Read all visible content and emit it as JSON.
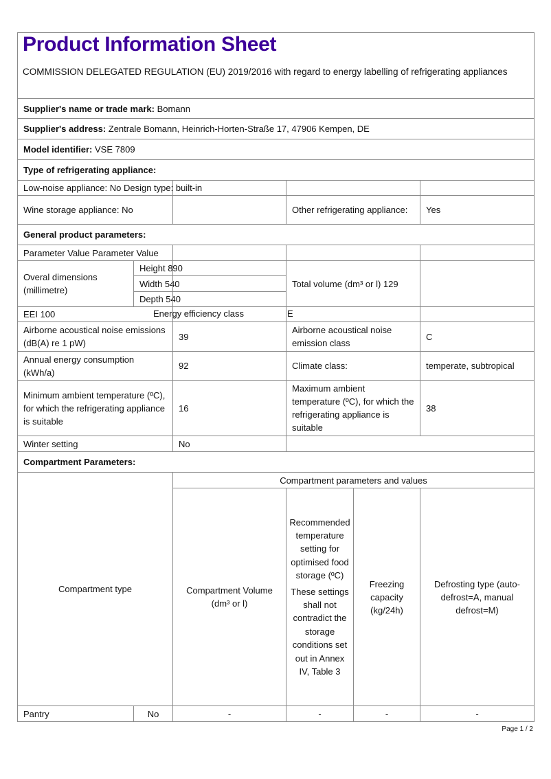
{
  "title": "Product Information Sheet",
  "subtitle": "COMMISSION DELEGATED REGULATION (EU) 2019/2016 with regard to energy labelling of refrigerating appliances",
  "supplier_name": {
    "label": "Supplier's name or trade mark:",
    "value": "Bomann"
  },
  "supplier_address": {
    "label": "Supplier's address:",
    "value": "Zentrale Bomann, Heinrich-Horten-Straße 17, 47906 Kempen, DE"
  },
  "model": {
    "label": "Model identifier:",
    "value": "VSE 7809"
  },
  "type_heading": "Type of refrigerating appliance:",
  "low_noise": "Low-noise appliance: No Design type: built-in",
  "wine_storage": "Wine storage appliance: No",
  "other_appliance": {
    "label": "Other refrigerating appliance:",
    "value": "Yes"
  },
  "general_heading": "General product parameters:",
  "param_header": "Parameter Value Parameter Value",
  "dimensions": {
    "label": "Overal dimensions (millimetre)",
    "height": "Height 890",
    "width": "Width 540",
    "depth": "Depth 540"
  },
  "total_volume": "Total volume (dm³ or l) 129",
  "eei": "EEI 100",
  "energy_class": {
    "label": "Energy efficiency class",
    "value": "E"
  },
  "noise": {
    "label": "Airborne acoustical noise emissions (dB(A) re 1 pW)",
    "value": "39"
  },
  "noise_class": {
    "label": "Airborne acoustical noise emission class",
    "value": "C"
  },
  "annual_energy": {
    "label": "Annual energy consumption (kWh/a)",
    "value": "92"
  },
  "climate": {
    "label": "Climate class:",
    "value": "temperate, subtropical"
  },
  "min_temp": {
    "label": "Minimum ambient temperature (ºC), for which the refrigerating appliance is suitable",
    "value": "16"
  },
  "max_temp": {
    "label": "Maximum ambient temperature (ºC), for which the refrigerating appliance is suitable",
    "value": "38"
  },
  "winter": {
    "label": "Winter setting",
    "value": "No"
  },
  "compartment_heading": "Compartment Parameters:",
  "compartment_table": {
    "type_header": "Compartment type",
    "group_header": "Compartment parameters and values",
    "volume_header": "Compartment Volume (dm³ or l)",
    "rec_temp_header": "Recommended temperature setting for optimised food storage (ºC)",
    "rec_temp_note": "These settings shall not contradict the storage conditions set out in Annex IV, Table 3",
    "freezing_header": "Freezing capacity (kg/24h)",
    "defrost_header": "Defrosting type (auto-defrost=A, manual defrost=M)",
    "rows": [
      {
        "type": "Pantry",
        "present": "No",
        "volume": "-",
        "rec_temp": "-",
        "freezing": "-",
        "defrost": "-"
      }
    ]
  },
  "footer": "Page 1 / 2"
}
